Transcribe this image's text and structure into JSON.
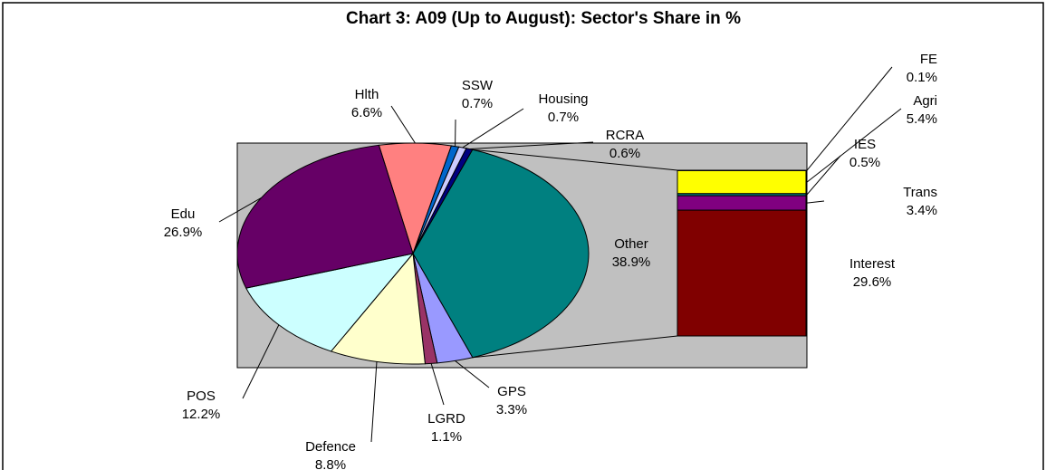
{
  "chart_data": {
    "type": "bar-of-pie",
    "title": "Chart 3: A09 (Up to August): Sector's Share in %",
    "pie": {
      "categories": [
        "Hlth",
        "SSW",
        "Housing",
        "RCRA",
        "Other",
        "GPS",
        "LGRD",
        "Defence",
        "POS",
        "Edu"
      ],
      "values": [
        6.6,
        0.7,
        0.7,
        0.6,
        38.9,
        3.3,
        1.1,
        8.8,
        12.2,
        26.9
      ],
      "value_labels": [
        "6.6%",
        "0.7%",
        "0.7%",
        "0.6%",
        "38.9%",
        "3.3%",
        "1.1%",
        "8.8%",
        "12.2%",
        "26.9%"
      ],
      "colors": [
        "#ff8080",
        "#0066cc",
        "#ccccff",
        "#000080",
        "#008080",
        "#9999ff",
        "#993366",
        "#ffffcc",
        "#ccffff",
        "#660066"
      ]
    },
    "bar": {
      "categories": [
        "FE",
        "Agri",
        "IES",
        "Trans",
        "Interest"
      ],
      "values": [
        0.1,
        5.4,
        0.5,
        3.4,
        29.6
      ],
      "value_labels": [
        "0.1%",
        "5.4%",
        "0.5%",
        "3.4%",
        "29.6%"
      ],
      "colors": [
        "#3366ff",
        "#ffff00",
        "#008080",
        "#800080",
        "#800000"
      ]
    }
  }
}
